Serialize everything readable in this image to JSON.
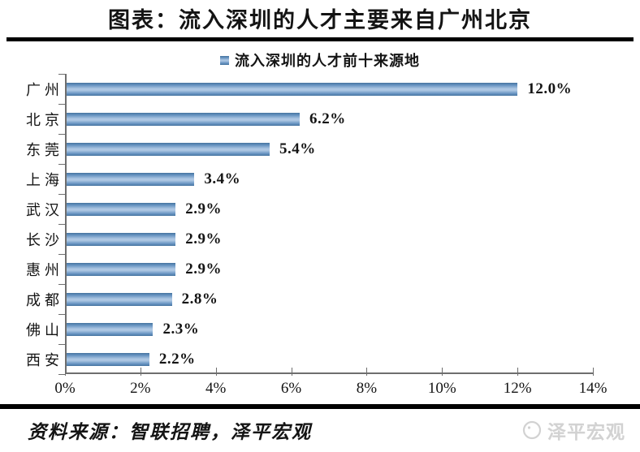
{
  "page": {
    "title": "图表：流入深圳的人才主要来自广州北京"
  },
  "chart_data": {
    "type": "bar",
    "orientation": "horizontal",
    "title": "流入深圳的人才前十来源地",
    "legend": "流入深圳的人才前十来源地",
    "legend_position": "top-center",
    "categories": [
      "广州",
      "北京",
      "东莞",
      "上海",
      "武汉",
      "长沙",
      "惠州",
      "成都",
      "佛山",
      "西安"
    ],
    "values": [
      12.0,
      6.2,
      5.4,
      3.4,
      2.9,
      2.9,
      2.9,
      2.8,
      2.3,
      2.2
    ],
    "value_labels": [
      "12.0%",
      "6.2%",
      "5.4%",
      "3.4%",
      "2.9%",
      "2.9%",
      "2.9%",
      "2.8%",
      "2.3%",
      "2.2%"
    ],
    "xlabel": "",
    "ylabel": "",
    "xlim": [
      0,
      14
    ],
    "x_tick_labels": [
      "0%",
      "2%",
      "4%",
      "6%",
      "8%",
      "10%",
      "12%",
      "14%"
    ],
    "grid": false,
    "bar_color_mid": "#adc7e3",
    "bar_color_dark": "#46749f",
    "axis_color": "#6e6e6e"
  },
  "footer": {
    "source": "资料来源：智联招聘，泽平宏观",
    "watermark": "泽平宏观",
    "watermark_color": "#d2d2d2"
  }
}
